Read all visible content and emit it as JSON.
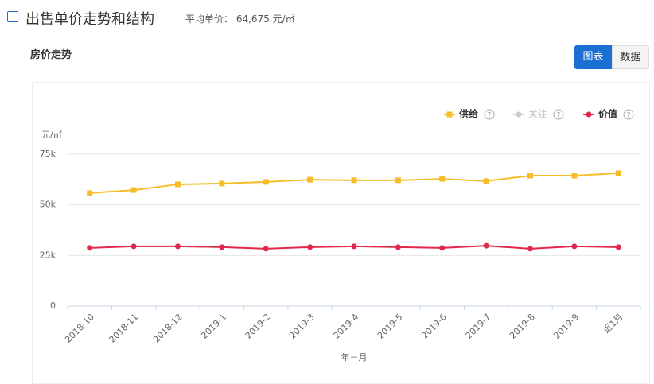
{
  "header": {
    "title": "出售单价走势和结构",
    "avg_label": "平均单价：",
    "avg_value": "64,675 元/㎡"
  },
  "section": {
    "title": "房价走势",
    "buttons": [
      "图表",
      "数据"
    ]
  },
  "chart_data": {
    "type": "line",
    "y_label": "元/㎡",
    "x_label": "年－月",
    "help_icon": "?",
    "categories": [
      "2018-10",
      "2018-11",
      "2018-12",
      "2019-1",
      "2019-2",
      "2019-3",
      "2019-4",
      "2019-5",
      "2019-6",
      "2019-7",
      "2019-8",
      "2019-9",
      "近1月"
    ],
    "series": [
      {
        "name": "供给",
        "color": "#f5bd27",
        "marker": "square",
        "values": [
          55800,
          57300,
          60100,
          60500,
          61300,
          62400,
          62100,
          62100,
          62800,
          61700,
          64400,
          64400,
          65600
        ]
      },
      {
        "name": "关注",
        "color": "#cccccc",
        "marker": "circle",
        "hidden": true,
        "values": [
          null,
          null,
          null,
          null,
          null,
          null,
          null,
          null,
          null,
          null,
          null,
          null,
          null
        ]
      },
      {
        "name": "价值",
        "color": "#e0284b",
        "marker": "circle",
        "values": [
          28700,
          29500,
          29500,
          29100,
          28300,
          29100,
          29500,
          29100,
          28700,
          29800,
          28300,
          29500,
          29100
        ]
      }
    ],
    "ylim": [
      0,
      75000
    ],
    "yticks": [
      0,
      {
        "value": 25000,
        "label": "25k"
      },
      {
        "value": 50000,
        "label": "50k"
      },
      {
        "value": 75000,
        "label": "75k"
      }
    ],
    "grid": true,
    "legend": "top-right"
  }
}
